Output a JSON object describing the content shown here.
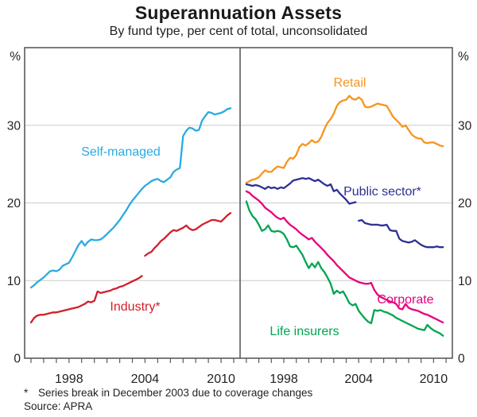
{
  "header": {
    "title": "Superannuation Assets",
    "subtitle": "By fund type, per cent of total, unconsolidated"
  },
  "footer": {
    "footnote_marker": "*",
    "footnote_text": "Series break in December 2003 due to coverage changes",
    "source": "Source: APRA"
  },
  "chart_data": {
    "type": "line",
    "unit": "%",
    "ylim": [
      0,
      40
    ],
    "y_ticks": [
      0,
      10,
      20,
      30
    ],
    "x_range": [
      1994.5,
      2011.5
    ],
    "x_step": 0.25,
    "x_ticks_labeled": [
      1998,
      2004,
      2010
    ],
    "grid": "horizontal gridlines at 10, 20, 30; two panels share y scale",
    "colors": {
      "grid": "#CBCBCB",
      "frame": "#5B5B5F",
      "text": "#231F20"
    },
    "panels": [
      {
        "name": "left",
        "series": [
          {
            "id": "self_managed",
            "label": "Self-managed",
            "color": "#29ABE2",
            "segments": [
              {
                "x_start": 1995.0,
                "values": [
                  9.1,
                  9.4,
                  9.8,
                  10.1,
                  10.4,
                  10.8,
                  11.2,
                  11.3,
                  11.2,
                  11.4,
                  11.9,
                  12.1,
                  12.3,
                  13.0,
                  13.8,
                  14.6,
                  15.1,
                  14.5,
                  15.0,
                  15.3,
                  15.2,
                  15.2,
                  15.3,
                  15.6,
                  16.0,
                  16.4,
                  16.8,
                  17.3,
                  17.8,
                  18.4,
                  19.0,
                  19.7,
                  20.3,
                  20.8,
                  21.3,
                  21.8,
                  22.2,
                  22.5,
                  22.8,
                  23.0,
                  23.1,
                  22.8,
                  22.7,
                  23.0,
                  23.3,
                  24.0,
                  24.3,
                  24.5,
                  28.6,
                  29.3,
                  29.7,
                  29.6,
                  29.3,
                  29.4,
                  30.6,
                  31.2,
                  31.7,
                  31.6,
                  31.4,
                  31.5,
                  31.6,
                  31.8,
                  32.1,
                  32.2
                ]
              }
            ]
          },
          {
            "id": "industry",
            "label": "Industry*",
            "color": "#D1202B",
            "segments": [
              {
                "x_start": 1995.0,
                "values": [
                  4.6,
                  5.2,
                  5.5,
                  5.6,
                  5.6,
                  5.7,
                  5.8,
                  5.9,
                  5.9,
                  6.0,
                  6.1,
                  6.2,
                  6.3,
                  6.4,
                  6.5,
                  6.6,
                  6.8,
                  7.0,
                  7.3,
                  7.2,
                  7.4,
                  8.6,
                  8.4,
                  8.5,
                  8.6,
                  8.7,
                  8.9,
                  9.0,
                  9.2,
                  9.3,
                  9.5,
                  9.7,
                  9.9,
                  10.1,
                  10.3,
                  10.6
                ]
              },
              {
                "x_start": 2004.0,
                "values": [
                  13.2,
                  13.5,
                  13.7,
                  14.2,
                  14.6,
                  15.1,
                  15.4,
                  15.8,
                  16.2,
                  16.5,
                  16.4,
                  16.6,
                  16.8,
                  17.1,
                  16.7,
                  16.5,
                  16.6,
                  16.9,
                  17.2,
                  17.4,
                  17.6,
                  17.8,
                  17.8,
                  17.7,
                  17.6,
                  18.0,
                  18.4,
                  18.7
                ]
              }
            ]
          }
        ]
      },
      {
        "name": "right",
        "series": [
          {
            "id": "retail",
            "label": "Retail",
            "color": "#F7941E",
            "segments": [
              {
                "x_start": 1995.0,
                "values": [
                  22.6,
                  22.8,
                  23.0,
                  23.1,
                  23.3,
                  23.8,
                  24.2,
                  24.0,
                  24.0,
                  24.4,
                  24.7,
                  24.6,
                  24.5,
                  25.3,
                  25.8,
                  25.7,
                  26.2,
                  27.2,
                  27.6,
                  27.4,
                  27.7,
                  28.1,
                  27.8,
                  27.9,
                  28.5,
                  29.5,
                  30.3,
                  30.8,
                  31.5,
                  32.5,
                  33.0,
                  33.2,
                  33.3,
                  33.8,
                  33.4,
                  33.3,
                  33.6,
                  33.3,
                  32.4,
                  32.3,
                  32.4,
                  32.6,
                  32.8,
                  32.7,
                  32.6,
                  32.5,
                  31.8,
                  31.1,
                  30.7,
                  30.3,
                  29.8,
                  30.0,
                  29.4,
                  28.8,
                  28.5,
                  28.3,
                  28.3,
                  27.8,
                  27.7,
                  27.8,
                  27.8,
                  27.6,
                  27.4,
                  27.3
                ]
              }
            ]
          },
          {
            "id": "public_sector",
            "label": "Public sector*",
            "color": "#2E3192",
            "segments": [
              {
                "x_start": 1995.0,
                "values": [
                  22.4,
                  22.3,
                  22.2,
                  22.3,
                  22.2,
                  22.0,
                  21.8,
                  22.1,
                  21.9,
                  22.0,
                  21.8,
                  22.0,
                  21.9,
                  22.2,
                  22.5,
                  22.9,
                  23.0,
                  23.1,
                  23.2,
                  23.1,
                  23.2,
                  23.0,
                  22.8,
                  23.0,
                  22.7,
                  22.4,
                  22.2,
                  22.4,
                  21.5,
                  21.7,
                  21.2,
                  20.8,
                  20.4,
                  19.9,
                  20.0,
                  20.1
                ]
              },
              {
                "x_start": 2004.0,
                "values": [
                  17.7,
                  17.8,
                  17.4,
                  17.3,
                  17.2,
                  17.2,
                  17.2,
                  17.1,
                  17.1,
                  17.2,
                  16.5,
                  16.4,
                  16.4,
                  15.4,
                  15.1,
                  15.0,
                  14.9,
                  15.0,
                  15.2,
                  14.9,
                  14.6,
                  14.4,
                  14.3,
                  14.3,
                  14.3,
                  14.4,
                  14.3,
                  14.3
                ]
              }
            ]
          },
          {
            "id": "corporate",
            "label": "Corporate",
            "color": "#E6007E",
            "segments": [
              {
                "x_start": 1995.0,
                "values": [
                  21.5,
                  21.3,
                  20.9,
                  20.6,
                  20.3,
                  19.9,
                  19.4,
                  19.1,
                  18.8,
                  18.4,
                  18.1,
                  17.9,
                  18.1,
                  17.6,
                  17.2,
                  16.9,
                  16.6,
                  16.2,
                  15.9,
                  15.6,
                  15.3,
                  15.5,
                  15.0,
                  14.6,
                  14.2,
                  13.8,
                  13.3,
                  12.9,
                  12.5,
                  12.0,
                  11.6,
                  11.2,
                  10.8,
                  10.4,
                  10.2,
                  10.0,
                  9.8,
                  9.7,
                  9.6,
                  9.6,
                  9.7,
                  8.8,
                  8.2,
                  7.9,
                  7.7,
                  7.5,
                  7.3,
                  7.2,
                  7.0,
                  6.4,
                  6.3,
                  7.0,
                  6.5,
                  6.3,
                  6.2,
                  6.1,
                  5.9,
                  5.7,
                  5.6,
                  5.4,
                  5.2,
                  5.0,
                  4.8,
                  4.6
                ]
              }
            ]
          },
          {
            "id": "life_insurers",
            "label": "Life insurers",
            "color": "#00A551",
            "segments": [
              {
                "x_start": 1995.0,
                "values": [
                  20.2,
                  19.0,
                  18.3,
                  17.9,
                  17.2,
                  16.4,
                  16.6,
                  17.1,
                  16.4,
                  16.3,
                  16.4,
                  16.3,
                  16.0,
                  15.3,
                  14.4,
                  14.3,
                  14.5,
                  13.9,
                  13.3,
                  12.4,
                  11.6,
                  12.2,
                  11.7,
                  12.4,
                  11.6,
                  11.1,
                  10.4,
                  9.6,
                  8.3,
                  8.7,
                  8.4,
                  8.6,
                  7.9,
                  7.1,
                  6.8,
                  7.0,
                  6.1,
                  5.6,
                  5.1,
                  4.7,
                  4.5,
                  6.2,
                  6.1,
                  6.2,
                  6.0,
                  5.9,
                  5.7,
                  5.5,
                  5.2,
                  5.0,
                  4.8,
                  4.6,
                  4.4,
                  4.2,
                  4.0,
                  3.8,
                  3.7,
                  3.6,
                  4.3,
                  3.9,
                  3.6,
                  3.4,
                  3.2,
                  2.9
                ]
              }
            ]
          }
        ]
      }
    ]
  }
}
